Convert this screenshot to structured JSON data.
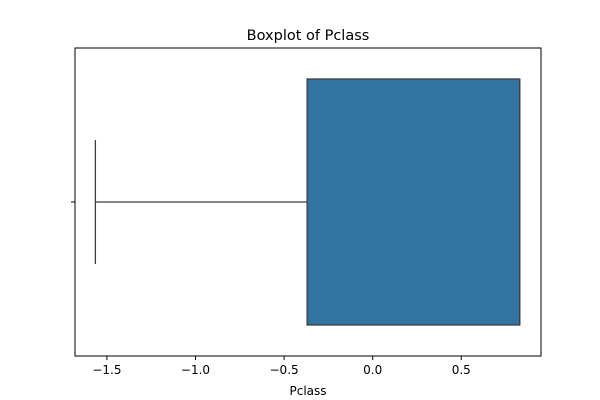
{
  "chart_data": {
    "type": "boxplot",
    "title": "Boxplot of Pclass",
    "xlabel": "Pclass",
    "ylabel": "",
    "xlim": [
      -1.68,
      0.95
    ],
    "xticks": [
      -1.5,
      -1.0,
      -0.5,
      0.0,
      0.5
    ],
    "xtick_labels": [
      "−1.5",
      "−1.0",
      "−0.5",
      "0.0",
      "0.5"
    ],
    "box": {
      "whisker_low": -1.565,
      "q1": -0.37,
      "median": 0.83,
      "q3": 0.83,
      "whisker_high": 0.83
    },
    "box_color": "#3274a1",
    "edge_color": "#3f3f3f",
    "grid": false
  }
}
